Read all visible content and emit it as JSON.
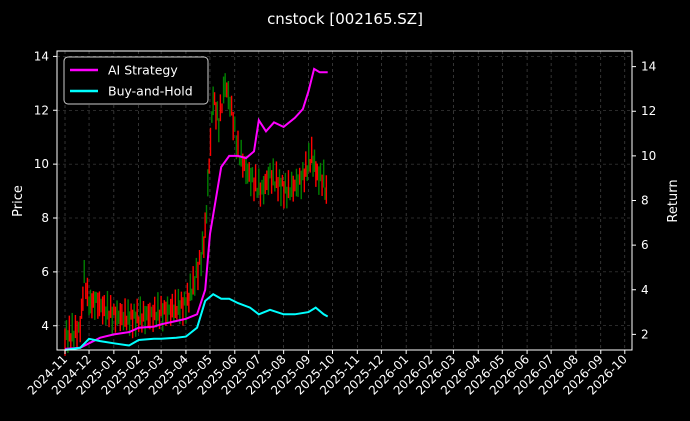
{
  "chart_data": {
    "type": "line",
    "title": "cnstock [002165.SZ]",
    "ylabel_left": "Price",
    "ylabel_right": "Return",
    "xlabel": "",
    "grid": true,
    "legend_position": "top-left",
    "ylim_left": [
      3.1,
      14.2
    ],
    "ylim_right": [
      1.3,
      14.7
    ],
    "left_ticks": [
      4,
      6,
      8,
      10,
      12,
      14
    ],
    "right_ticks": [
      2,
      4,
      6,
      8,
      10,
      12,
      14
    ],
    "x_ticks": [
      "2024-11",
      "2024-12",
      "2025-01",
      "2025-02",
      "2025-03",
      "2025-04",
      "2025-05",
      "2025-06",
      "2025-07",
      "2025-08",
      "2025-09",
      "2025-10",
      "2025-11",
      "2025-12",
      "2026-01",
      "2026-02",
      "2026-03",
      "2026-04",
      "2026-05",
      "2026-06",
      "2026-07",
      "2026-08",
      "2026-09",
      "2026-10"
    ],
    "series": [
      {
        "name": "AI Strategy",
        "axis": "right",
        "color": "#ff00ff",
        "points": [
          [
            "2024-11-01",
            1.35
          ],
          [
            "2024-11-20",
            1.4
          ],
          [
            "2024-12-01",
            1.6
          ],
          [
            "2024-12-15",
            1.85
          ],
          [
            "2025-01-01",
            2.0
          ],
          [
            "2025-01-20",
            2.1
          ],
          [
            "2025-02-01",
            2.3
          ],
          [
            "2025-02-20",
            2.35
          ],
          [
            "2025-03-01",
            2.45
          ],
          [
            "2025-03-20",
            2.6
          ],
          [
            "2025-04-01",
            2.7
          ],
          [
            "2025-04-15",
            2.9
          ],
          [
            "2025-04-25",
            4.0
          ],
          [
            "2025-05-01",
            6.5
          ],
          [
            "2025-05-08",
            8.0
          ],
          [
            "2025-05-15",
            9.5
          ],
          [
            "2025-05-25",
            10.0
          ],
          [
            "2025-06-05",
            10.0
          ],
          [
            "2025-06-15",
            9.9
          ],
          [
            "2025-06-25",
            10.2
          ],
          [
            "2025-07-01",
            11.6
          ],
          [
            "2025-07-10",
            11.1
          ],
          [
            "2025-07-20",
            11.5
          ],
          [
            "2025-08-01",
            11.3
          ],
          [
            "2025-08-15",
            11.7
          ],
          [
            "2025-08-25",
            12.1
          ],
          [
            "2025-09-01",
            12.9
          ],
          [
            "2025-09-08",
            13.9
          ],
          [
            "2025-09-15",
            13.75
          ],
          [
            "2025-09-25",
            13.75
          ]
        ]
      },
      {
        "name": "Buy-and-Hold",
        "axis": "right",
        "color": "#00ffff",
        "points": [
          [
            "2024-11-01",
            1.3
          ],
          [
            "2024-11-20",
            1.4
          ],
          [
            "2024-12-01",
            1.8
          ],
          [
            "2024-12-15",
            1.7
          ],
          [
            "2025-01-01",
            1.6
          ],
          [
            "2025-01-20",
            1.5
          ],
          [
            "2025-02-01",
            1.75
          ],
          [
            "2025-02-20",
            1.8
          ],
          [
            "2025-03-01",
            1.8
          ],
          [
            "2025-03-20",
            1.85
          ],
          [
            "2025-04-01",
            1.9
          ],
          [
            "2025-04-15",
            2.3
          ],
          [
            "2025-04-25",
            3.5
          ],
          [
            "2025-05-05",
            3.8
          ],
          [
            "2025-05-15",
            3.6
          ],
          [
            "2025-05-25",
            3.6
          ],
          [
            "2025-06-05",
            3.4
          ],
          [
            "2025-06-20",
            3.2
          ],
          [
            "2025-07-01",
            2.9
          ],
          [
            "2025-07-15",
            3.1
          ],
          [
            "2025-08-01",
            2.9
          ],
          [
            "2025-08-15",
            2.9
          ],
          [
            "2025-09-01",
            3.0
          ],
          [
            "2025-09-10",
            3.2
          ],
          [
            "2025-09-20",
            2.9
          ],
          [
            "2025-09-25",
            2.8
          ]
        ]
      },
      {
        "name": "",
        "axis": "left",
        "style": "candles",
        "up_color": "#008000",
        "down_color": "#ff0000",
        "points": [
          [
            "2024-11-01",
            3.6
          ],
          [
            "2024-11-10",
            3.7
          ],
          [
            "2024-11-20",
            3.9
          ],
          [
            "2024-11-25",
            5.8
          ],
          [
            "2024-12-01",
            4.8
          ],
          [
            "2024-12-10",
            4.9
          ],
          [
            "2024-12-20",
            4.6
          ],
          [
            "2025-01-01",
            4.4
          ],
          [
            "2025-01-15",
            4.3
          ],
          [
            "2025-02-01",
            4.3
          ],
          [
            "2025-02-15",
            4.4
          ],
          [
            "2025-03-01",
            4.5
          ],
          [
            "2025-03-15",
            4.6
          ],
          [
            "2025-04-01",
            4.8
          ],
          [
            "2025-04-10",
            5.5
          ],
          [
            "2025-04-20",
            6.5
          ],
          [
            "2025-04-25",
            7.5
          ],
          [
            "2025-04-30",
            10.0
          ],
          [
            "2025-05-05",
            12.5
          ],
          [
            "2025-05-12",
            11.5
          ],
          [
            "2025-05-20",
            13.0
          ],
          [
            "2025-05-28",
            12.0
          ],
          [
            "2025-06-05",
            10.5
          ],
          [
            "2025-06-15",
            9.8
          ],
          [
            "2025-06-25",
            9.3
          ],
          [
            "2025-07-05",
            9.0
          ],
          [
            "2025-07-15",
            9.6
          ],
          [
            "2025-07-25",
            9.3
          ],
          [
            "2025-08-05",
            9.0
          ],
          [
            "2025-08-15",
            9.2
          ],
          [
            "2025-08-25",
            9.5
          ],
          [
            "2025-09-05",
            10.3
          ],
          [
            "2025-09-12",
            9.6
          ],
          [
            "2025-09-20",
            9.4
          ],
          [
            "2025-09-25",
            8.6
          ]
        ]
      }
    ]
  }
}
